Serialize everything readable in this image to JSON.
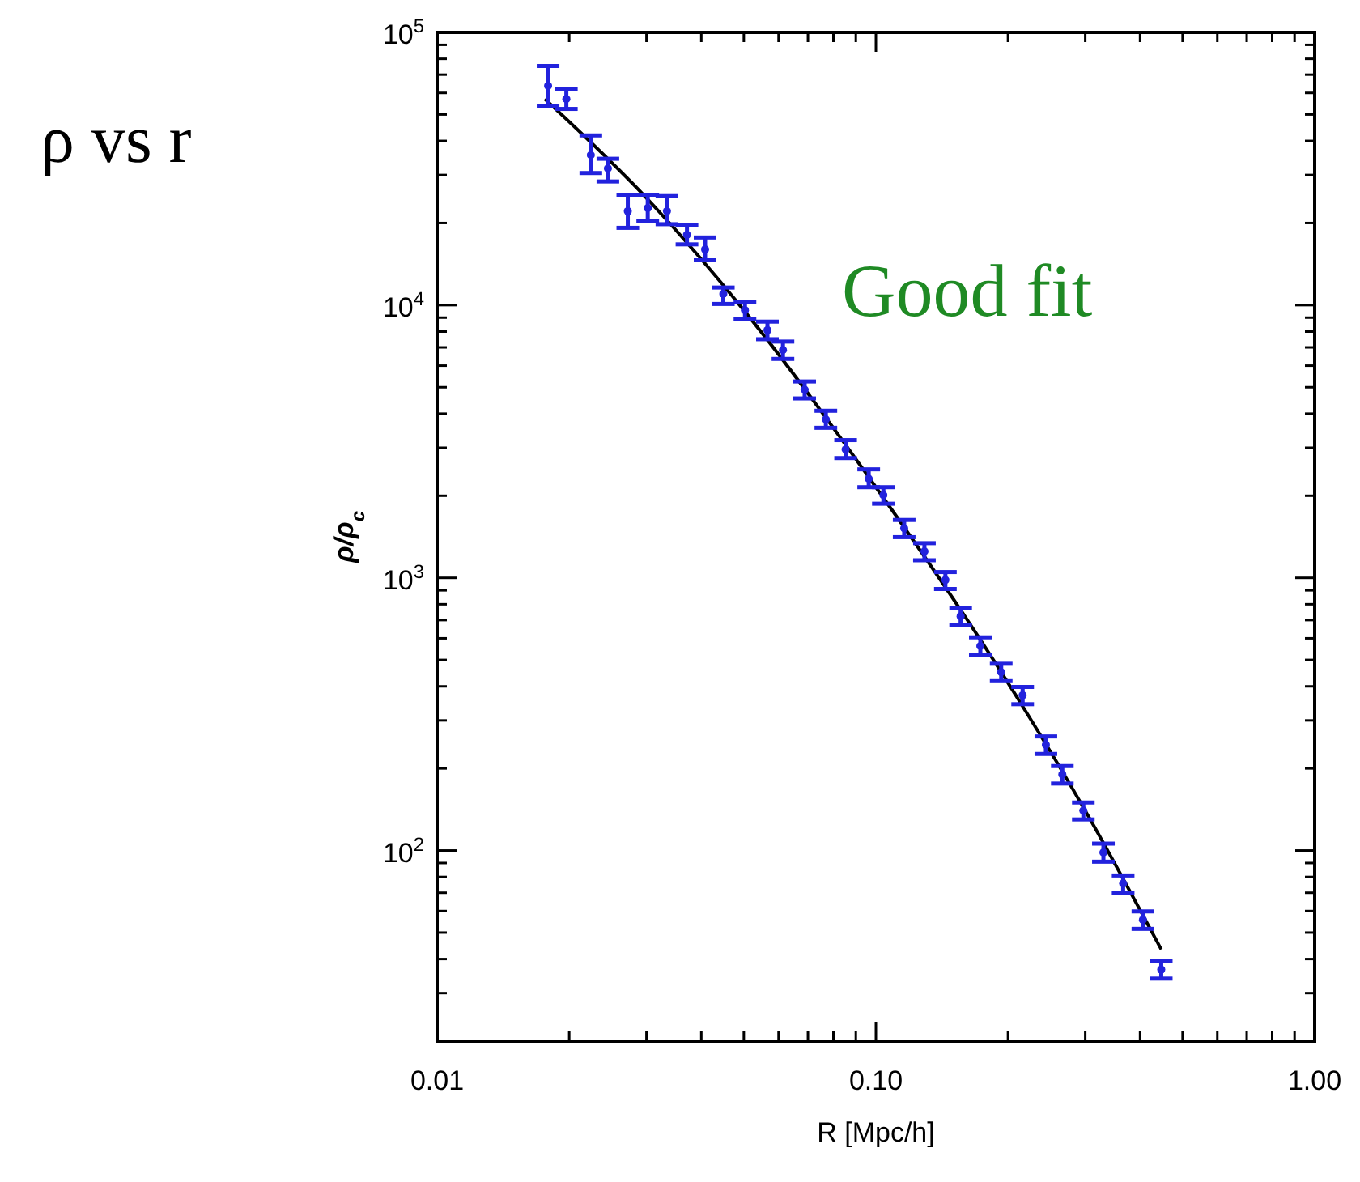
{
  "chart_data": {
    "type": "scatter",
    "xlabel": "R [Mpc/h]",
    "ylabel": "ρ/ρ$_{c}$",
    "annotations": [
      "ρ vs r",
      "Good fit"
    ],
    "log": "xy",
    "grid": false,
    "xlim": [
      0.01,
      1
    ],
    "ylim": [
      20,
      100000
    ],
    "xticks": [
      {
        "value": 0.01,
        "label": "0.01"
      },
      {
        "value": 0.02,
        "label": null
      },
      {
        "value": 0.03,
        "label": null
      },
      {
        "value": 0.04,
        "label": null
      },
      {
        "value": 0.05,
        "label": null
      },
      {
        "value": 0.06,
        "label": null
      },
      {
        "value": 0.07,
        "label": null
      },
      {
        "value": 0.08,
        "label": null
      },
      {
        "value": 0.09,
        "label": null
      },
      {
        "value": 0.1,
        "label": "0.10"
      },
      {
        "value": 0.2,
        "label": null
      },
      {
        "value": 0.3,
        "label": null
      },
      {
        "value": 0.4,
        "label": null
      },
      {
        "value": 0.5,
        "label": null
      },
      {
        "value": 0.6,
        "label": null
      },
      {
        "value": 0.7,
        "label": null
      },
      {
        "value": 0.8,
        "label": null
      },
      {
        "value": 0.9,
        "label": null
      },
      {
        "value": 1,
        "label": "1.00"
      }
    ],
    "yticks": [
      {
        "value": 100,
        "label": "10$^{2}$"
      },
      {
        "value": 1000,
        "label": "10$^{3}$"
      },
      {
        "value": 10000,
        "label": "10$^{4}$"
      },
      {
        "value": 100000,
        "label": "10$^{5}$"
      }
    ],
    "series": [
      {
        "marker": "circle",
        "color": "#2222dd",
        "x": [
          0.0179,
          0.0197,
          0.0224,
          0.0245,
          0.0272,
          0.0302,
          0.0334,
          0.0371,
          0.0408,
          0.0449,
          0.0503,
          0.0566,
          0.0614,
          0.0688,
          0.0769,
          0.0853,
          0.0963,
          0.104,
          0.116,
          0.129,
          0.144,
          0.156,
          0.173,
          0.193,
          0.216,
          0.244,
          0.266,
          0.297,
          0.33,
          0.366,
          0.406,
          0.447
        ],
        "values": [
          63700,
          57000,
          35500,
          31700,
          22100,
          22700,
          22100,
          18100,
          16000,
          11000,
          9580,
          8090,
          6850,
          4900,
          3810,
          2960,
          2310,
          2010,
          1520,
          1250,
          982,
          723,
          562,
          451,
          371,
          244,
          190,
          140,
          98.4,
          75.7,
          55.7,
          36.6
        ],
        "errors": [
          [
            53800,
            75300
          ],
          [
            52400,
            62000
          ],
          [
            30500,
            41900
          ],
          [
            28400,
            34400
          ],
          [
            19200,
            25400
          ],
          [
            20300,
            25400
          ],
          [
            19800,
            25100
          ],
          [
            16700,
            19700
          ],
          [
            14600,
            17700
          ],
          [
            10100,
            11600
          ],
          [
            8900,
            10300
          ],
          [
            7500,
            8700
          ],
          [
            6350,
            7350
          ],
          [
            4550,
            5250
          ],
          [
            3550,
            4100
          ],
          [
            2750,
            3200
          ],
          [
            2150,
            2500
          ],
          [
            1870,
            2150
          ],
          [
            1410,
            1630
          ],
          [
            1160,
            1340
          ],
          [
            910,
            1050
          ],
          [
            670,
            775
          ],
          [
            520,
            605
          ],
          [
            418,
            484
          ],
          [
            344,
            398
          ],
          [
            226,
            262
          ],
          [
            176,
            204
          ],
          [
            130,
            150
          ],
          [
            91,
            106
          ],
          [
            70,
            81
          ],
          [
            51.6,
            59.8
          ],
          [
            33.9,
            39.3
          ]
        ]
      },
      {
        "type": "line",
        "color": "#000000",
        "x": [
          0.0176,
          0.03,
          0.05,
          0.1,
          0.193,
          0.297,
          0.447
        ],
        "values": [
          57000,
          24700,
          9580,
          2150,
          451,
          144,
          43.4
        ]
      }
    ]
  }
}
